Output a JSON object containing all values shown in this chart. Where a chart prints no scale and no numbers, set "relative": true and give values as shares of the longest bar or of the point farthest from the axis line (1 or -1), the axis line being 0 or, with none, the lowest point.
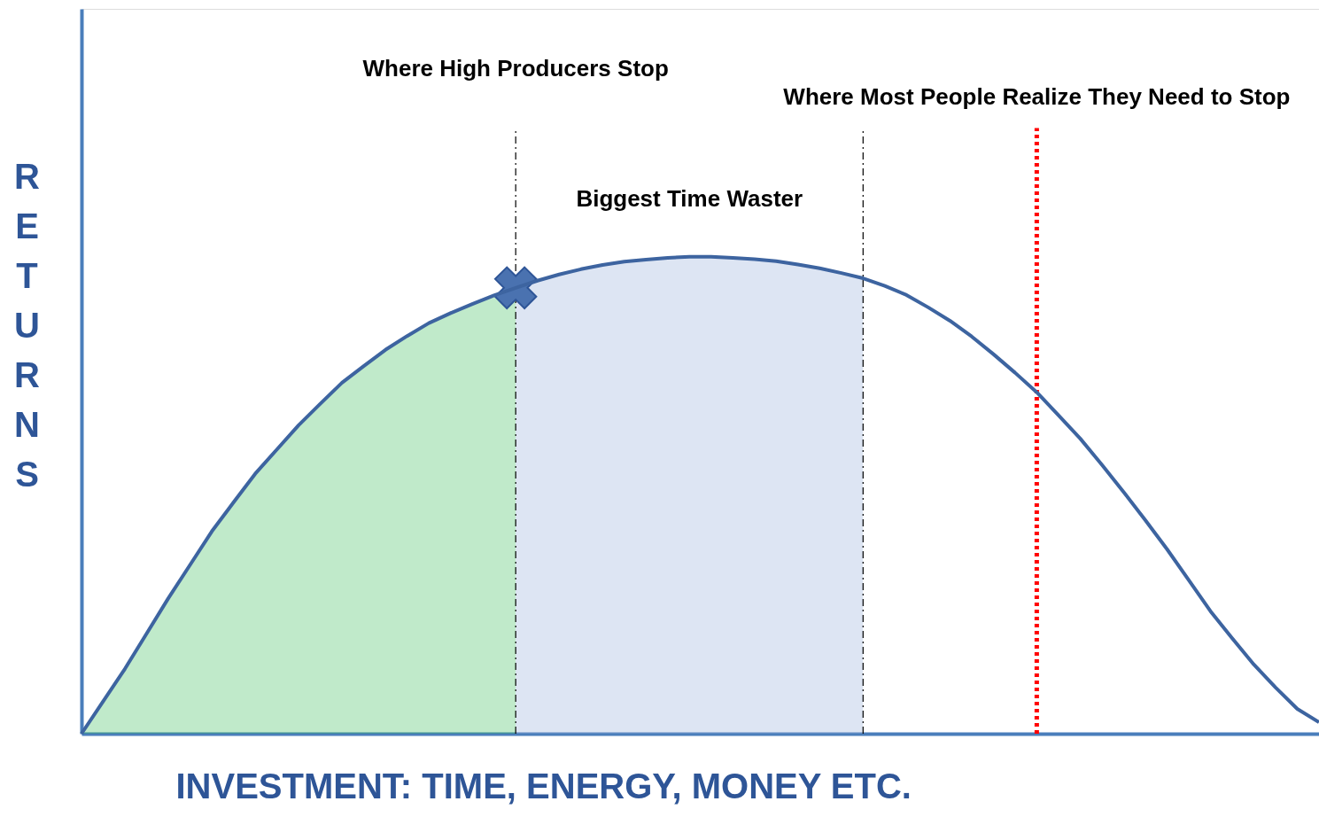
{
  "chart_data": {
    "type": "line",
    "relative": true,
    "xlabel": "INVESTMENT: TIME, ENERGY, MONEY ETC.",
    "ylabel": "RETURNS",
    "grid": false,
    "line_style": "solid",
    "categories": [
      null,
      null,
      null,
      null,
      null,
      null,
      null,
      null,
      null,
      null,
      null,
      null,
      null,
      null,
      null,
      null,
      null,
      null,
      null,
      null,
      null,
      null,
      null,
      null,
      null,
      null,
      null,
      null,
      null,
      null,
      null,
      null,
      null,
      null,
      null,
      null,
      null,
      null,
      null,
      null,
      null,
      null,
      null,
      null,
      null,
      null,
      null,
      null,
      null,
      null,
      null,
      null,
      null,
      null,
      null,
      null,
      null,
      null
    ],
    "series": [
      {
        "color": "#3d64a0",
        "values": [
          0,
          0.068,
          0.136,
          0.21,
          0.284,
          0.354,
          0.424,
          0.485,
          0.545,
          0.596,
          0.647,
          0.692,
          0.736,
          0.771,
          0.805,
          0.834,
          0.861,
          0.882,
          0.901,
          0.919,
          0.935,
          0.95,
          0.963,
          0.974,
          0.983,
          0.99,
          0.994,
          0.998,
          1.0,
          1.0,
          0.998,
          0.995,
          0.991,
          0.984,
          0.976,
          0.966,
          0.955,
          0.939,
          0.92,
          0.894,
          0.866,
          0.833,
          0.796,
          0.757,
          0.716,
          0.668,
          0.619,
          0.564,
          0.507,
          0.448,
          0.387,
          0.322,
          0.257,
          0.2,
          0.145,
          0.097,
          0.052,
          0.024
        ]
      }
    ],
    "annotations": [
      "Where High Producers Stop",
      "Biggest Time Waster",
      "Where Most People Realize They Need to Stop"
    ]
  }
}
